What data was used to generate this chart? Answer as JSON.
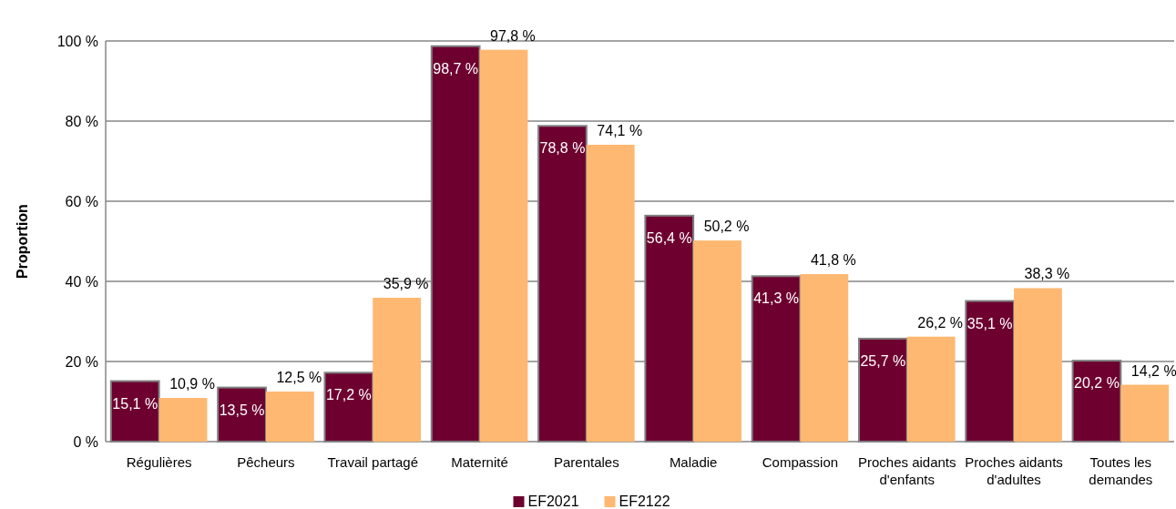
{
  "chart_data": {
    "type": "bar",
    "ylabel": "Proportion",
    "categories": [
      "Régulières",
      "Pêcheurs",
      "Travail partagé",
      "Maternité",
      "Parentales",
      "Maladie",
      "Compassion",
      "Proches aidants d'enfants",
      "Proches aidants d'adultes",
      "Toutes les demandes"
    ],
    "series": [
      {
        "name": "EF2021",
        "color": "#6e0030",
        "values": [
          15.1,
          13.5,
          17.2,
          98.7,
          78.8,
          56.4,
          41.3,
          25.7,
          35.1,
          20.2
        ],
        "value_labels": [
          "15,1 %",
          "13,5 %",
          "17,2 %",
          "98,7 %",
          "78,8 %",
          "56,4 %",
          "41,3 %",
          "25,7 %",
          "35,1 %",
          "20,2 %"
        ]
      },
      {
        "name": "EF2122",
        "color": "#ffb871",
        "values": [
          10.9,
          12.5,
          35.9,
          97.8,
          74.1,
          50.2,
          41.8,
          26.2,
          38.3,
          14.2
        ],
        "value_labels": [
          "10,9 %",
          "12,5 %",
          "35,9 %",
          "97,8 %",
          "74,1 %",
          "50,2 %",
          "41,8 %",
          "26,2 %",
          "38,3 %",
          "14,2 %"
        ]
      }
    ],
    "ylim": [
      0,
      100
    ],
    "yticks": [
      {
        "value": 0,
        "label": "0 %"
      },
      {
        "value": 20,
        "label": "20 %"
      },
      {
        "value": 40,
        "label": "40 %"
      },
      {
        "value": 60,
        "label": "60 %"
      },
      {
        "value": 80,
        "label": "80 %"
      },
      {
        "value": 100,
        "label": "100 %"
      }
    ],
    "grid": "y",
    "legend": "bottom"
  }
}
